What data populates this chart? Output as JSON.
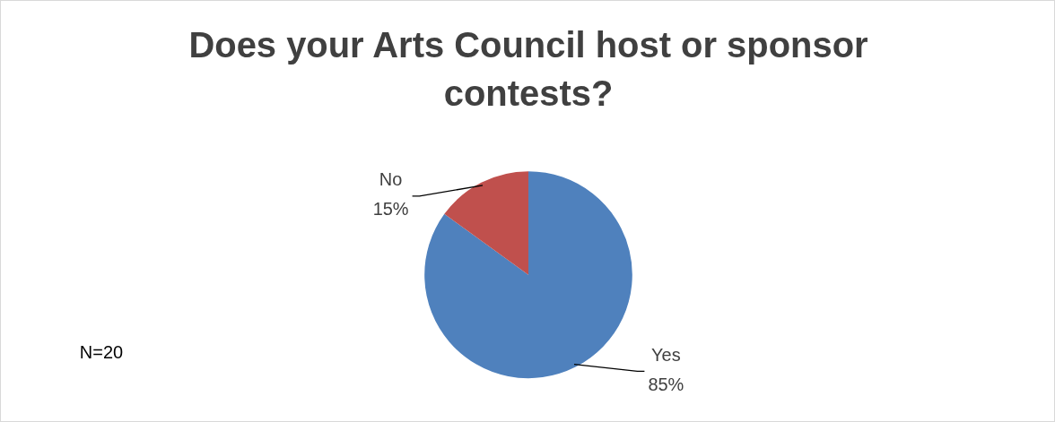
{
  "chart_data": {
    "type": "pie",
    "title": "Does your Arts Council host or sponsor contests?",
    "categories": [
      "Yes",
      "No"
    ],
    "values": [
      85,
      15
    ],
    "colors": [
      "#4f81bd",
      "#c0504d"
    ],
    "value_labels": [
      "85%",
      "15%"
    ],
    "legend": false,
    "annotations": [
      "N=20"
    ]
  }
}
